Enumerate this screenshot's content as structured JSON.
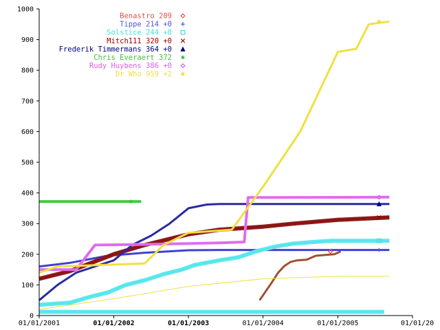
{
  "chart_data": {
    "type": "line",
    "title": "",
    "xlabel": "",
    "ylabel": "",
    "x_axis": {
      "type": "date",
      "range": [
        "2001-01-01",
        "2006-01-01"
      ],
      "ticks": [
        {
          "date": "2001-01-01",
          "label": "01/01/2001",
          "bold": false
        },
        {
          "date": "2002-01-01",
          "label": "01/01/2002",
          "bold": true
        },
        {
          "date": "2003-01-01",
          "label": "01/01/2003",
          "bold": true
        },
        {
          "date": "2004-01-01",
          "label": "01/01/2004",
          "bold": false
        },
        {
          "date": "2005-01-01",
          "label": "01/01/2005",
          "bold": false
        },
        {
          "date": "2006-01-01",
          "label": "01/01/20",
          "bold": false
        }
      ]
    },
    "y_axis": {
      "range": [
        0,
        1000
      ],
      "ticks": [
        0,
        100,
        200,
        300,
        400,
        500,
        600,
        700,
        800,
        900,
        1000
      ]
    },
    "grid": false,
    "legend_position": "top-center",
    "series": [
      {
        "name": "Benastro 209",
        "color": "#e05050",
        "stroke": "#a05030",
        "marker": "diamond",
        "width": 3,
        "points": [
          [
            "2003-12-15",
            50
          ],
          [
            "2004-01-15",
            80
          ],
          [
            "2004-02-15",
            110
          ],
          [
            "2004-03-15",
            140
          ],
          [
            "2004-04-15",
            162
          ],
          [
            "2004-05-15",
            175
          ],
          [
            "2004-06-15",
            180
          ],
          [
            "2004-08-01",
            182
          ],
          [
            "2004-09-15",
            195
          ],
          [
            "2004-12-15",
            200
          ],
          [
            "2005-01-15",
            209
          ]
        ]
      },
      {
        "name": "Tippe 214 +0",
        "color": "#5050e0",
        "stroke": "#4040d0",
        "marker": "plus",
        "width": 3,
        "points": [
          [
            "2001-01-01",
            160
          ],
          [
            "2001-06-01",
            172
          ],
          [
            "2001-12-01",
            195
          ],
          [
            "2002-06-01",
            205
          ],
          [
            "2003-01-01",
            213
          ],
          [
            "2003-06-01",
            214
          ],
          [
            "2005-09-10",
            214
          ]
        ]
      },
      {
        "name": "Solstice 244 +0",
        "color": "#40e0e0",
        "stroke": "#60e8f0",
        "marker": "square",
        "width": 6,
        "points": [
          [
            "2001-01-01",
            35
          ],
          [
            "2001-06-01",
            42
          ],
          [
            "2001-09-01",
            60
          ],
          [
            "2001-12-01",
            75
          ],
          [
            "2002-03-01",
            100
          ],
          [
            "2002-06-01",
            115
          ],
          [
            "2002-09-01",
            135
          ],
          [
            "2002-12-01",
            150
          ],
          [
            "2003-02-01",
            165
          ],
          [
            "2003-06-01",
            180
          ],
          [
            "2003-09-01",
            190
          ],
          [
            "2003-12-01",
            210
          ],
          [
            "2004-03-01",
            225
          ],
          [
            "2004-06-01",
            235
          ],
          [
            "2004-09-01",
            240
          ],
          [
            "2004-12-01",
            244
          ],
          [
            "2005-09-10",
            244
          ]
        ]
      },
      {
        "name": "Mitch111 320 +0",
        "color": "#a00000",
        "stroke": "#8b1a1a",
        "marker": "cross",
        "width": 6,
        "points": [
          [
            "2001-01-01",
            120
          ],
          [
            "2001-06-01",
            145
          ],
          [
            "2002-01-01",
            200
          ],
          [
            "2002-06-01",
            230
          ],
          [
            "2003-01-01",
            265
          ],
          [
            "2003-06-01",
            280
          ],
          [
            "2004-01-01",
            290
          ],
          [
            "2004-06-01",
            300
          ],
          [
            "2005-01-01",
            312
          ],
          [
            "2005-09-10",
            320
          ]
        ]
      },
      {
        "name": "Frederik Timmermans 364 +0",
        "color": "#000080",
        "stroke": "#2a2aa0",
        "marker": "triangle",
        "width": 3,
        "points": [
          [
            "2001-01-01",
            50
          ],
          [
            "2001-04-01",
            100
          ],
          [
            "2001-07-01",
            140
          ],
          [
            "2001-10-01",
            160
          ],
          [
            "2002-01-01",
            180
          ],
          [
            "2002-04-01",
            230
          ],
          [
            "2002-07-01",
            260
          ],
          [
            "2002-10-01",
            300
          ],
          [
            "2003-01-01",
            350
          ],
          [
            "2003-04-01",
            362
          ],
          [
            "2003-06-01",
            364
          ],
          [
            "2005-09-10",
            364
          ]
        ]
      },
      {
        "name": "Chris Everaert 372",
        "color": "#40c040",
        "stroke": "#40d040",
        "marker": "asterisk",
        "width": 4,
        "points": [
          [
            "2001-01-01",
            372
          ],
          [
            "2002-05-15",
            372
          ]
        ]
      },
      {
        "name": "Rudy Huybens 386 +0",
        "color": "#e060e0",
        "stroke": "#e070f0",
        "marker": "diamond",
        "width": 4,
        "points": [
          [
            "2001-01-01",
            150
          ],
          [
            "2001-07-01",
            150
          ],
          [
            "2001-10-01",
            230
          ],
          [
            "2002-06-01",
            232
          ],
          [
            "2003-01-01",
            235
          ],
          [
            "2003-06-01",
            237
          ],
          [
            "2003-10-01",
            240
          ],
          [
            "2003-10-20",
            385
          ],
          [
            "2005-09-10",
            386
          ]
        ]
      },
      {
        "name": "Dr Who 959 +2",
        "color": "#f0e040",
        "stroke": "#f0e040",
        "marker": "asterisk",
        "width": 3,
        "points": [
          [
            "2001-01-01",
            140
          ],
          [
            "2001-04-01",
            160
          ],
          [
            "2002-06-01",
            170
          ],
          [
            "2002-09-01",
            230
          ],
          [
            "2003-01-01",
            270
          ],
          [
            "2003-08-01",
            280
          ],
          [
            "2004-01-01",
            420
          ],
          [
            "2004-07-01",
            600
          ],
          [
            "2005-01-01",
            860
          ],
          [
            "2005-04-01",
            870
          ],
          [
            "2005-06-01",
            950
          ],
          [
            "2005-09-10",
            959
          ]
        ]
      },
      {
        "name": "",
        "color": "#f0e040",
        "stroke": "#f0e040",
        "marker": "none",
        "width": 1,
        "points": [
          [
            "2001-01-01",
            20
          ],
          [
            "2002-01-01",
            55
          ],
          [
            "2003-01-01",
            95
          ],
          [
            "2004-01-01",
            120
          ],
          [
            "2005-01-01",
            128
          ],
          [
            "2005-09-10",
            128
          ]
        ]
      },
      {
        "name": "",
        "color": "#40e0e0",
        "stroke": "#60e8f0",
        "marker": "none",
        "width": 6,
        "points": [
          [
            "2001-01-01",
            12
          ],
          [
            "2005-08-15",
            12
          ]
        ]
      }
    ]
  }
}
